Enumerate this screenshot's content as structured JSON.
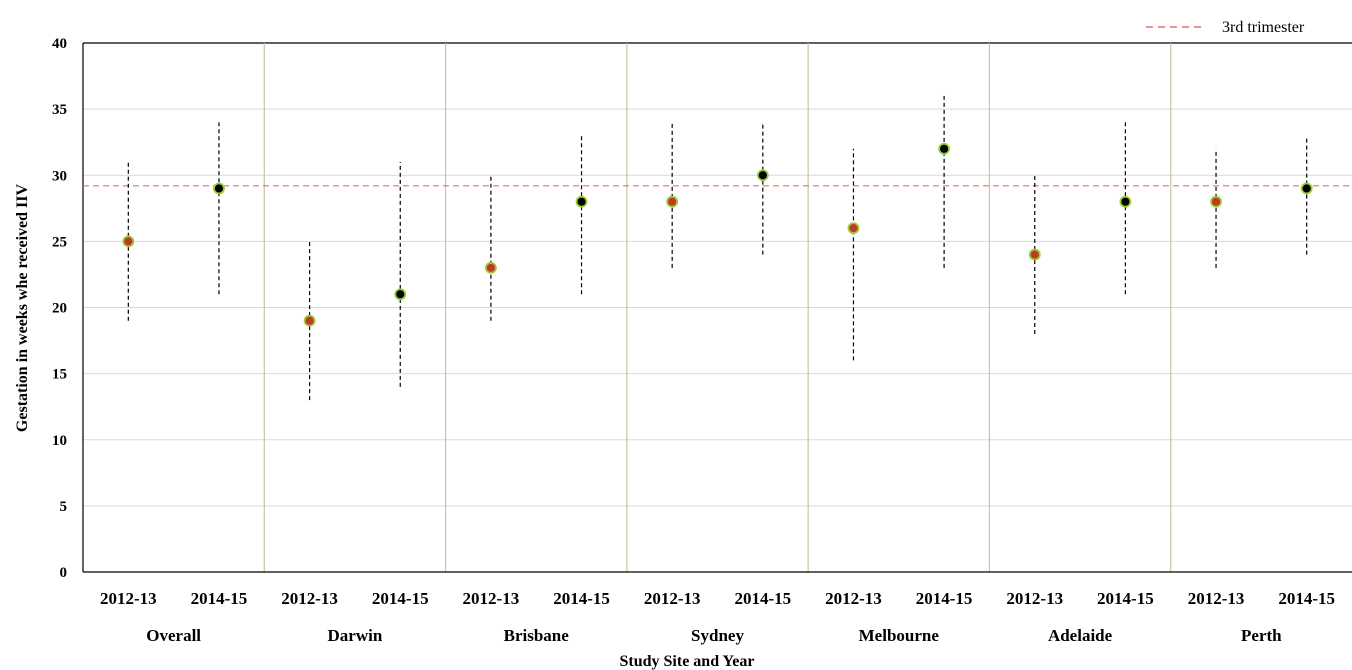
{
  "chart_data": {
    "type": "scatter",
    "title": "",
    "xlabel": "Study Site and Year",
    "ylabel": "Gestation in weeks whe  received IIV",
    "ylim": [
      0,
      40
    ],
    "yticks": [
      0,
      5,
      10,
      15,
      20,
      25,
      30,
      35,
      40
    ],
    "grid": true,
    "legend": {
      "position": "top-right",
      "entries": [
        "3rd trimester"
      ]
    },
    "reference_line": {
      "name": "3rd trimester",
      "y": 29.2,
      "color": "#e07070",
      "style": "dashed"
    },
    "groups": [
      "Overall",
      "Darwin",
      "Brisbane",
      "Sydney",
      "Melbourne",
      "Adelaide",
      "Perth"
    ],
    "categories": [
      "2012-13",
      "2014-15",
      "2012-13",
      "2014-15",
      "2012-13",
      "2014-15",
      "2012-13",
      "2014-15",
      "2012-13",
      "2014-15",
      "2012-13",
      "2014-15",
      "2012-13",
      "2014-15"
    ],
    "points": [
      {
        "group": "Overall",
        "period": "2012-13",
        "median": 25,
        "low": 19,
        "high": 31,
        "marker": "#c0392b"
      },
      {
        "group": "Overall",
        "period": "2014-15",
        "median": 29,
        "low": 21,
        "high": 34,
        "marker": "#000000"
      },
      {
        "group": "Darwin",
        "period": "2012-13",
        "median": 19,
        "low": 13,
        "high": 25,
        "marker": "#c0392b"
      },
      {
        "group": "Darwin",
        "period": "2014-15",
        "median": 21,
        "low": 14,
        "high": 31,
        "marker": "#000000"
      },
      {
        "group": "Brisbane",
        "period": "2012-13",
        "median": 23,
        "low": 19,
        "high": 30,
        "marker": "#c0392b"
      },
      {
        "group": "Brisbane",
        "period": "2014-15",
        "median": 28,
        "low": 21,
        "high": 33,
        "marker": "#000000"
      },
      {
        "group": "Sydney",
        "period": "2012-13",
        "median": 28,
        "low": 23,
        "high": 34,
        "marker": "#c0392b"
      },
      {
        "group": "Sydney",
        "period": "2014-15",
        "median": 30,
        "low": 24,
        "high": 34,
        "marker": "#000000"
      },
      {
        "group": "Melbourne",
        "period": "2012-13",
        "median": 26,
        "low": 16,
        "high": 32,
        "marker": "#c0392b"
      },
      {
        "group": "Melbourne",
        "period": "2014-15",
        "median": 32,
        "low": 23,
        "high": 36,
        "marker": "#000000"
      },
      {
        "group": "Adelaide",
        "period": "2012-13",
        "median": 24,
        "low": 18,
        "high": 30,
        "marker": "#c0392b"
      },
      {
        "group": "Adelaide",
        "period": "2014-15",
        "median": 28,
        "low": 21,
        "high": 34,
        "marker": "#000000"
      },
      {
        "group": "Perth",
        "period": "2012-13",
        "median": 28,
        "low": 23,
        "high": 32,
        "marker": "#c0392b"
      },
      {
        "group": "Perth",
        "period": "2014-15",
        "median": 29,
        "low": 24,
        "high": 33,
        "marker": "#000000"
      }
    ],
    "colors": {
      "gridline": "#d9d9d9",
      "separator": "#c8c4a0",
      "marker_edge": "#9acd32",
      "errorbar": "#000000"
    }
  }
}
